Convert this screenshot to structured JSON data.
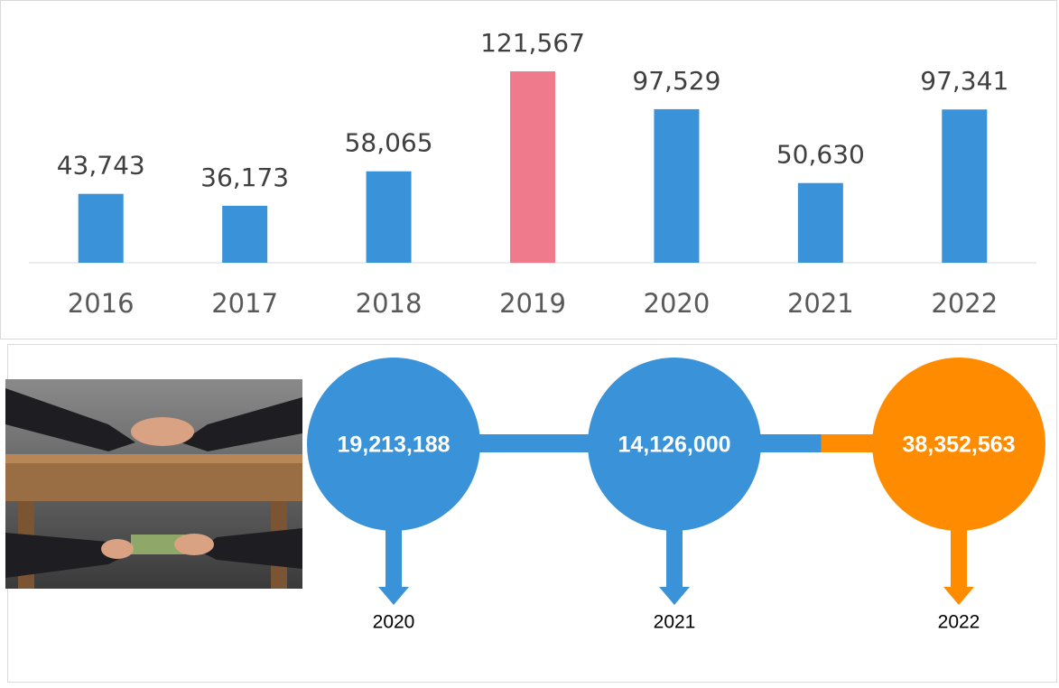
{
  "chart_data": [
    {
      "type": "bar",
      "categories": [
        "2016",
        "2017",
        "2018",
        "2019",
        "2020",
        "2021",
        "2022"
      ],
      "values": [
        43743,
        36173,
        58065,
        121567,
        97529,
        50630,
        97341
      ],
      "value_labels": [
        "43,743",
        "36,173",
        "58,065",
        "121,567",
        "97,529",
        "50,630",
        "97,341"
      ],
      "colors": [
        "#3a93d8",
        "#3a93d8",
        "#3a93d8",
        "#ef7a8c",
        "#3a93d8",
        "#3a93d8",
        "#3a93d8"
      ]
    },
    {
      "type": "timeline",
      "categories": [
        "2020",
        "2021",
        "2022"
      ],
      "values": [
        19213188,
        14126000,
        38352563
      ],
      "value_labels": [
        "19,213,188",
        "14,126,000",
        "38,352,563"
      ],
      "colors": [
        "#3a93d8",
        "#3a93d8",
        "#ff8c00"
      ]
    }
  ]
}
